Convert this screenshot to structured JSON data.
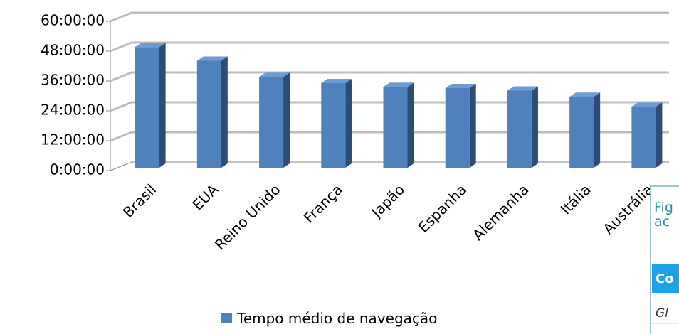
{
  "chart_data": {
    "type": "bar3d",
    "categories": [
      "Brasil",
      "EUA",
      "Reino Unido",
      "França",
      "Japão",
      "Espanha",
      "Alemanha",
      "Itália",
      "Austrália"
    ],
    "series": [
      {
        "name": "Tempo médio de navegação",
        "color": "#4f81bd",
        "values": [
          48.5,
          43,
          36.5,
          34,
          32.5,
          32,
          31,
          28.5,
          24.5
        ]
      }
    ],
    "ylim": [
      0,
      60
    ],
    "yticks": [
      {
        "value": 0,
        "label": "0:00:00"
      },
      {
        "value": 12,
        "label": "12:00:00"
      },
      {
        "value": 24,
        "label": "24:00:00"
      },
      {
        "value": 36,
        "label": "36:00:00"
      },
      {
        "value": 48,
        "label": "48:00:00"
      },
      {
        "value": 60,
        "label": "60:00:00"
      }
    ],
    "grid": true,
    "legend": "bottom"
  },
  "overlay": {
    "caption": [
      "Fig",
      "ac"
    ],
    "header": "Co",
    "row": "Gl"
  }
}
